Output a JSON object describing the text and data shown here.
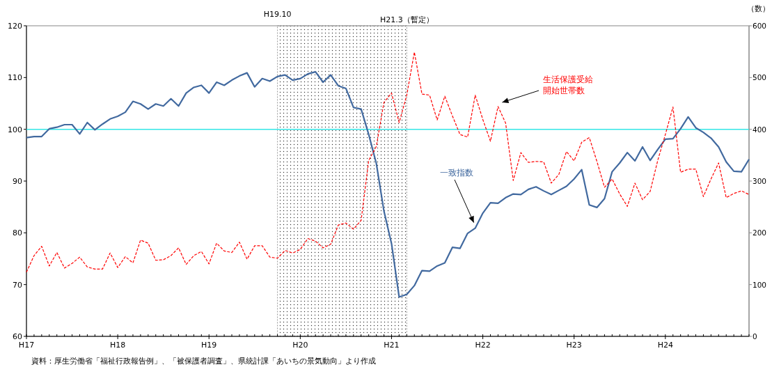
{
  "chart_data": {
    "type": "line",
    "categories": [
      "H17",
      null,
      null,
      null,
      null,
      null,
      null,
      null,
      null,
      null,
      null,
      null,
      "H18",
      null,
      null,
      null,
      null,
      null,
      null,
      null,
      null,
      null,
      null,
      null,
      "H19",
      null,
      null,
      null,
      null,
      null,
      null,
      null,
      null,
      null,
      null,
      null,
      "H20",
      null,
      null,
      null,
      null,
      null,
      null,
      null,
      null,
      null,
      null,
      null,
      "H21",
      null,
      null,
      null,
      null,
      null,
      null,
      null,
      null,
      null,
      null,
      null,
      "H22",
      null,
      null,
      null,
      null,
      null,
      null,
      null,
      null,
      null,
      null,
      null,
      "H23",
      null,
      null,
      null,
      null,
      null,
      null,
      null,
      null,
      null,
      null,
      null,
      "H24",
      null,
      null,
      null,
      null,
      null,
      null,
      null,
      null,
      null,
      null,
      null
    ],
    "ylim": [
      60,
      120
    ],
    "yticks": [
      60,
      70,
      80,
      90,
      100,
      110,
      120
    ],
    "y2lim": [
      0,
      600
    ],
    "y2ticks": [
      0,
      100,
      200,
      300,
      400,
      500,
      600
    ],
    "y2label": "（数）",
    "series": [
      {
        "name": "一致指数",
        "color": "#41699f",
        "line_style": "solid",
        "values": [
          98.4,
          98.6,
          98.6,
          100.1,
          100.4,
          100.9,
          100.9,
          99.1,
          101.3,
          99.9,
          101.0,
          102.0,
          102.5,
          103.3,
          105.4,
          104.9,
          103.9,
          104.9,
          104.5,
          105.9,
          104.5,
          107.0,
          108.1,
          108.5,
          107.0,
          109.1,
          108.5,
          109.5,
          110.3,
          110.9,
          108.2,
          109.8,
          109.3,
          110.2,
          110.5,
          109.5,
          109.8,
          110.7,
          111.1,
          109.1,
          110.5,
          108.4,
          107.9,
          104.2,
          103.9,
          99.0,
          93.4,
          84.2,
          77.9,
          67.6,
          68.1,
          69.8,
          72.7,
          72.6,
          73.6,
          74.2,
          77.2,
          77.0,
          79.9,
          80.9,
          83.8,
          85.8,
          85.7,
          86.8,
          87.5,
          87.4,
          88.4,
          88.9,
          88.1,
          87.4,
          88.2,
          89.0,
          90.4,
          92.2,
          85.4,
          84.9,
          86.6,
          91.8,
          93.5,
          95.5,
          93.9,
          96.6,
          94.0,
          96.1,
          98.1,
          98.2,
          100.1,
          102.4,
          100.3,
          99.4,
          98.3,
          96.6,
          93.7,
          91.9,
          91.8,
          94.2
        ]
      },
      {
        "name": "生活保護受給開始世帯数",
        "axis": "y2",
        "color": "#ff0000",
        "line_style": "dashed",
        "values": [
          124,
          156,
          174,
          136,
          162,
          132,
          141,
          153,
          134,
          130,
          130,
          161,
          133,
          154,
          142,
          186,
          180,
          147,
          148,
          156,
          171,
          139,
          156,
          164,
          140,
          180,
          165,
          162,
          182,
          149,
          175,
          175,
          153,
          151,
          166,
          161,
          168,
          189,
          184,
          171,
          178,
          215,
          219,
          207,
          224,
          340,
          367,
          452,
          470,
          413,
          466,
          549,
          468,
          466,
          418,
          464,
          426,
          390,
          385,
          466,
          419,
          377,
          444,
          412,
          301,
          355,
          336,
          338,
          337,
          296,
          313,
          357,
          339,
          375,
          384,
          338,
          288,
          304,
          275,
          251,
          296,
          264,
          280,
          340,
          390,
          443,
          317,
          323,
          323,
          270,
          304,
          335,
          268,
          276,
          281,
          274
        ]
      }
    ],
    "ref_lines": [
      {
        "axis": "y",
        "value": 100,
        "color": "#33e6e6"
      }
    ],
    "annotations": [
      "H19.10",
      "H21.3（暫定）",
      "資料：厚生労働省「福祉行政報告例」、「被保護者調査」、県統計課「あいちの景気動向」より作成"
    ],
    "grid": false,
    "legend": false,
    "marker": "none"
  }
}
